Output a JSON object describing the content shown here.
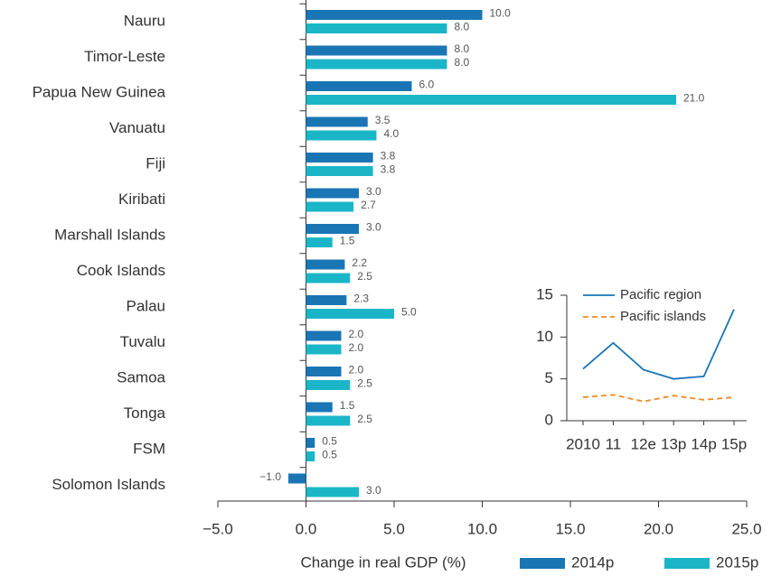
{
  "chart_data": [
    {
      "type": "bar",
      "orientation": "horizontal",
      "x_label": "Change in real GDP (%)",
      "categories": [
        "Nauru",
        "Timor-Leste",
        "Papua New Guinea",
        "Vanuatu",
        "Fiji",
        "Kiribati",
        "Marshall Islands",
        "Cook Islands",
        "Palau",
        "Tuvalu",
        "Samoa",
        "Tonga",
        "FSM",
        "Solomon Islands"
      ],
      "series": [
        {
          "name": "2014p",
          "color": "#1a75b5",
          "values": [
            10,
            8,
            6,
            3.5,
            3.8,
            3,
            3,
            2.2,
            2.3,
            2,
            2,
            1.5,
            0.5,
            -1
          ],
          "value_labels": [
            "10.0",
            "8.0",
            "6.0",
            "3.5",
            "3.8",
            "3.0",
            "3.0",
            "2.2",
            "2.3",
            "2.0",
            "2.0",
            "1.5",
            "0.5",
            "−1.0"
          ]
        },
        {
          "name": "2015p",
          "color": "#1ab6c8",
          "values": [
            8,
            8,
            21,
            4,
            3.8,
            2.7,
            1.5,
            2.5,
            5,
            2,
            2.5,
            2.5,
            0.5,
            3
          ],
          "value_labels": [
            "8.0",
            "8.0",
            "21.0",
            "4.0",
            "3.8",
            "2.7",
            "1.5",
            "2.5",
            "5.0",
            "2.0",
            "2.5",
            "2.5",
            "0.5",
            "3.0"
          ]
        }
      ],
      "xlim": [
        -5,
        25
      ],
      "xticks": [
        {
          "value": -5,
          "label": "−5.0"
        },
        {
          "value": 0,
          "label": "0.0"
        },
        {
          "value": 5,
          "label": "5.0"
        },
        {
          "value": 10,
          "label": "10.0"
        },
        {
          "value": 15,
          "label": "15.0"
        },
        {
          "value": 20,
          "label": "20.0"
        },
        {
          "value": 25,
          "label": "25.0"
        }
      ],
      "legend": "bottom"
    },
    {
      "type": "line",
      "categories": [
        "2010",
        "11",
        "12e",
        "13p",
        "14p",
        "15p"
      ],
      "series": [
        {
          "name": "Pacific region",
          "color": "#1a75b5",
          "linestyle": "solid",
          "values": [
            6.2,
            9.3,
            6.1,
            5.0,
            5.3,
            13.3
          ]
        },
        {
          "name": "Pacific islands",
          "color": "#f08a24",
          "linestyle": "dashed",
          "values": [
            2.8,
            3.1,
            2.3,
            3.0,
            2.5,
            2.8
          ]
        }
      ],
      "ylim": [
        0,
        15
      ],
      "yticks": [
        0,
        5,
        10,
        15
      ],
      "legend": "upper left"
    }
  ]
}
